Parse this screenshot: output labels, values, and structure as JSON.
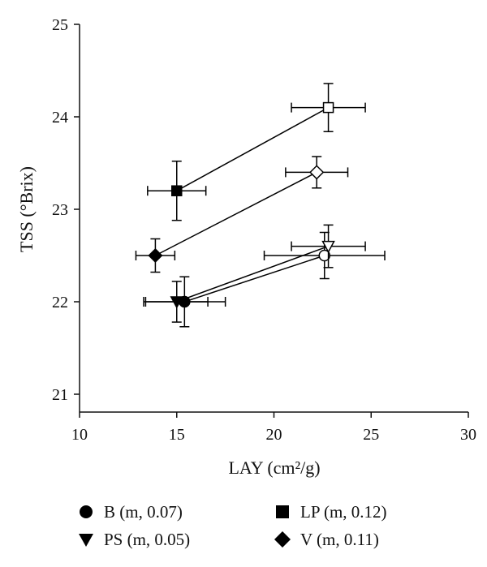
{
  "chart_data": {
    "type": "scatter",
    "xlabel": "LAY (cm²/g)",
    "ylabel": "TSS (°Brix)",
    "xlim": [
      10,
      30
    ],
    "ylim": [
      20.6,
      25
    ],
    "x_ticks": [
      "10",
      "15",
      "20",
      "25",
      "30"
    ],
    "y_ticks": [
      "21",
      "22",
      "23",
      "24",
      "25"
    ],
    "grid": false,
    "legend_placement": "bottom",
    "series": [
      {
        "name": "B (m, 0.07)",
        "marker": "circle",
        "points": [
          {
            "x": 15.4,
            "y": 22.0,
            "xerr": 2.1,
            "yerr": 0.27,
            "filled": true
          },
          {
            "x": 22.6,
            "y": 22.5,
            "xerr": 3.1,
            "yerr": 0.25,
            "filled": false
          }
        ]
      },
      {
        "name": "LP (m, 0.12)",
        "marker": "square",
        "points": [
          {
            "x": 15.0,
            "y": 23.2,
            "xerr": 1.5,
            "yerr": 0.32,
            "filled": true
          },
          {
            "x": 22.8,
            "y": 24.1,
            "xerr": 1.9,
            "yerr": 0.26,
            "filled": false
          }
        ]
      },
      {
        "name": "PS (m, 0.05)",
        "marker": "triangle-down",
        "points": [
          {
            "x": 15.0,
            "y": 22.0,
            "xerr": 1.6,
            "yerr": 0.22,
            "filled": true
          },
          {
            "x": 22.8,
            "y": 22.6,
            "xerr": 1.9,
            "yerr": 0.23,
            "filled": false
          }
        ]
      },
      {
        "name": "V (m, 0.11)",
        "marker": "diamond",
        "points": [
          {
            "x": 13.9,
            "y": 22.5,
            "xerr": 1.0,
            "yerr": 0.18,
            "filled": true
          },
          {
            "x": 22.2,
            "y": 23.4,
            "xerr": 1.6,
            "yerr": 0.17,
            "filled": false
          }
        ]
      }
    ]
  },
  "legend": [
    {
      "label": "B (m, 0.07)",
      "marker": "circle"
    },
    {
      "label": "LP (m, 0.12)",
      "marker": "square"
    },
    {
      "label": "PS (m, 0.05)",
      "marker": "triangle-down"
    },
    {
      "label": "V (m, 0.11)",
      "marker": "diamond"
    }
  ]
}
